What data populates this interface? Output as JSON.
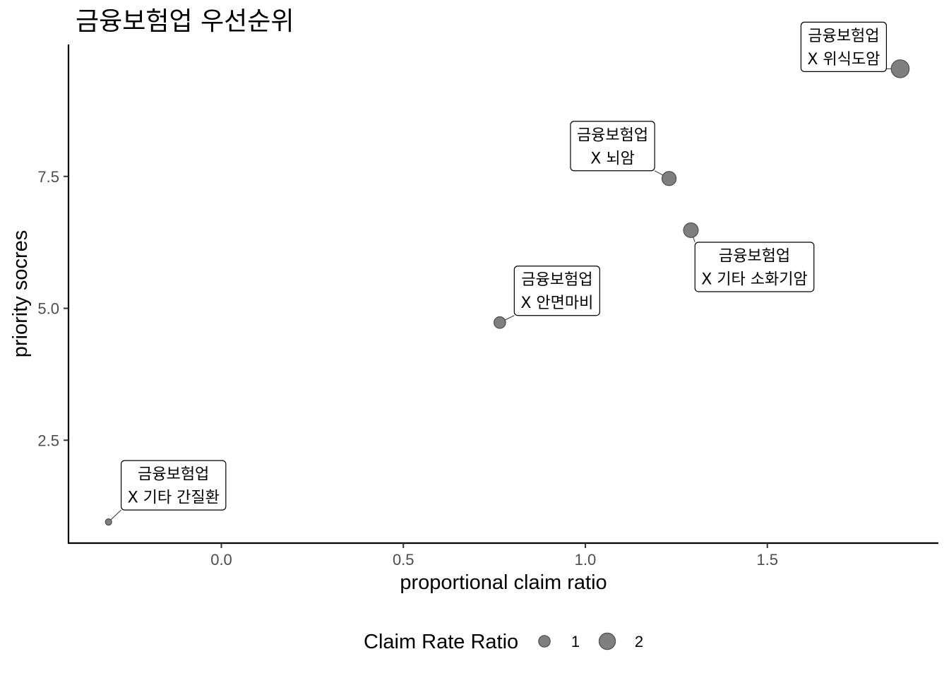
{
  "chart_data": {
    "type": "scatter",
    "title": "금융보험업  우선순위",
    "xlabel": "proportional claim ratio",
    "ylabel": "priority socres",
    "xlim": [
      -0.42,
      1.97
    ],
    "ylim": [
      0.55,
      10.0
    ],
    "x_ticks": [
      0.0,
      0.5,
      1.0,
      1.5
    ],
    "x_tick_labels": [
      "0.0",
      "0.5",
      "1.0",
      "1.5"
    ],
    "y_ticks": [
      2.5,
      5.0,
      7.5
    ],
    "y_tick_labels": [
      "2.5",
      "5.0",
      "7.5"
    ],
    "grid": false,
    "point_color": "#7f7f7f",
    "point_outline": "#4d4d4d",
    "points": [
      {
        "x": -0.31,
        "y": 0.95,
        "size": 0.3,
        "label": [
          "금융보험업",
          "X 기타 간질환"
        ]
      },
      {
        "x": 0.765,
        "y": 4.73,
        "size": 1.0,
        "label": [
          "금융보험업",
          "X 안면마비"
        ]
      },
      {
        "x": 1.23,
        "y": 7.46,
        "size": 1.5,
        "label": [
          "금융보험업",
          "X 뇌암"
        ]
      },
      {
        "x": 1.29,
        "y": 6.48,
        "size": 1.6,
        "label": [
          "금융보험업",
          "X 기타 소화기암"
        ]
      },
      {
        "x": 1.865,
        "y": 9.54,
        "size": 2.4,
        "label": [
          "금융보험업",
          "X 위식도암"
        ]
      }
    ],
    "legend": {
      "title": "Claim Rate Ratio",
      "position": "bottom",
      "entries": [
        {
          "label": "1",
          "size": 1
        },
        {
          "label": "2",
          "size": 2
        }
      ]
    }
  }
}
